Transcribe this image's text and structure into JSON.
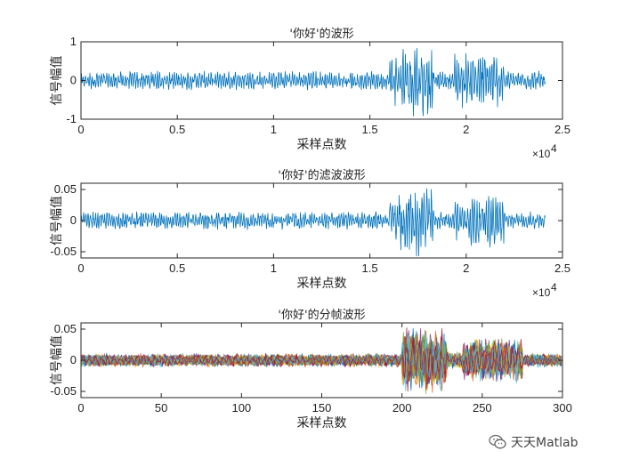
{
  "chart_data": [
    {
      "type": "line",
      "title": "'你好'的波形",
      "xlabel": "采样点数",
      "ylabel": "信号幅值",
      "xlim": [
        0,
        25000
      ],
      "ylim": [
        -1,
        1
      ],
      "xticks": [
        0,
        5000,
        10000,
        15000,
        20000,
        25000
      ],
      "xtick_labels": [
        "0",
        "0.5",
        "1",
        "1.5",
        "2",
        "2.5"
      ],
      "x_multiplier": "×10",
      "x_multiplier_exp": "4",
      "yticks": [
        -1,
        0,
        1
      ],
      "ytick_labels": [
        "-1",
        "0",
        "1"
      ],
      "color": "#0072BD",
      "series": [
        {
          "segments": [
            {
              "x_start": 0,
              "x_end": 16000,
              "amplitude": 0.25
            },
            {
              "x_start": 16000,
              "x_end": 16500,
              "amplitude": 0.7
            },
            {
              "x_start": 16500,
              "x_end": 18300,
              "amplitude": 1.0
            },
            {
              "x_start": 18300,
              "x_end": 19400,
              "amplitude": 0.25
            },
            {
              "x_start": 19400,
              "x_end": 22000,
              "amplitude": 0.75
            },
            {
              "x_start": 22000,
              "x_end": 24100,
              "amplitude": 0.25
            }
          ]
        }
      ]
    },
    {
      "type": "line",
      "title": "'你好'的滤波波形",
      "xlabel": "采样点数",
      "ylabel": "信号幅值",
      "xlim": [
        0,
        25000
      ],
      "ylim": [
        -0.06,
        0.06
      ],
      "xticks": [
        0,
        5000,
        10000,
        15000,
        20000,
        25000
      ],
      "xtick_labels": [
        "0",
        "0.5",
        "1",
        "1.5",
        "2",
        "2.5"
      ],
      "x_multiplier": "×10",
      "x_multiplier_exp": "4",
      "yticks": [
        -0.05,
        0,
        0.05
      ],
      "ytick_labels": [
        "-0.05",
        "0",
        "0.05"
      ],
      "color": "#0072BD",
      "series": [
        {
          "segments": [
            {
              "x_start": 0,
              "x_end": 16000,
              "amplitude": 0.015
            },
            {
              "x_start": 16000,
              "x_end": 16500,
              "amplitude": 0.04
            },
            {
              "x_start": 16500,
              "x_end": 18300,
              "amplitude": 0.06
            },
            {
              "x_start": 18300,
              "x_end": 19400,
              "amplitude": 0.015
            },
            {
              "x_start": 19400,
              "x_end": 22000,
              "amplitude": 0.045
            },
            {
              "x_start": 22000,
              "x_end": 24100,
              "amplitude": 0.015
            }
          ]
        }
      ]
    },
    {
      "type": "line",
      "title": "'你好'的分帧波形",
      "xlabel": "采样点数",
      "ylabel": "信号幅值",
      "xlim": [
        0,
        300
      ],
      "ylim": [
        -0.06,
        0.06
      ],
      "xticks": [
        0,
        50,
        100,
        150,
        200,
        250,
        300
      ],
      "xtick_labels": [
        "0",
        "50",
        "100",
        "150",
        "200",
        "250",
        "300"
      ],
      "yticks": [
        -0.05,
        0,
        0.05
      ],
      "ytick_labels": [
        "-0.05",
        "0",
        "0.05"
      ],
      "colors": [
        "#0072BD",
        "#D95319",
        "#EDB120",
        "#7E2F8E",
        "#77AC30",
        "#4DBEEE",
        "#A2142F"
      ],
      "series": [
        {
          "segments": [
            {
              "x_start": 0,
              "x_end": 200,
              "amplitude": 0.012
            },
            {
              "x_start": 200,
              "x_end": 228,
              "amplitude": 0.06
            },
            {
              "x_start": 228,
              "x_end": 238,
              "amplitude": 0.015
            },
            {
              "x_start": 238,
              "x_end": 275,
              "amplitude": 0.04
            },
            {
              "x_start": 275,
              "x_end": 300,
              "amplitude": 0.012
            }
          ]
        }
      ]
    }
  ],
  "watermark": {
    "icon": "wechat-icon",
    "text": "天天Matlab"
  }
}
